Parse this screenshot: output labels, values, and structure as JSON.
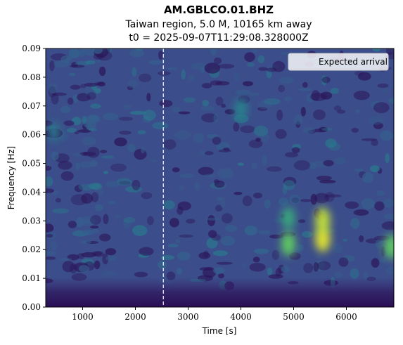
{
  "chart_data": {
    "type": "heatmap",
    "title": "AM.GBLCO.01.BHZ",
    "subtitle_lines": [
      "Taiwan region, 5.0 M, 10165 km away",
      "t0 = 2025-09-07T11:29:08.328000Z"
    ],
    "xlabel": "Time [s]",
    "ylabel": "Frequency [Hz]",
    "xlim": [
      300,
      6900
    ],
    "ylim": [
      0,
      0.09
    ],
    "x_ticks": [
      1000,
      2000,
      3000,
      4000,
      5000,
      6000
    ],
    "x_tick_labels": [
      "1000",
      "2000",
      "3000",
      "4000",
      "5000",
      "6000"
    ],
    "y_ticks": [
      0,
      0.01,
      0.02,
      0.03,
      0.04,
      0.05,
      0.06,
      0.07,
      0.08,
      0.09
    ],
    "y_tick_labels": [
      "0.00",
      "0.01",
      "0.02",
      "0.03",
      "0.04",
      "0.05",
      "0.06",
      "0.07",
      "0.08",
      "0.09"
    ],
    "colormap": "viridis",
    "expected_arrival": {
      "x": 2530,
      "label": "Expected arrival",
      "color": "#ffffff",
      "style": "dashed"
    },
    "legend_position": "upper right",
    "grid": false,
    "energy_hotspots": [
      {
        "time": 4900,
        "freq": 0.022,
        "intensity": 0.75
      },
      {
        "time": 4900,
        "freq": 0.031,
        "intensity": 0.6
      },
      {
        "time": 5550,
        "freq": 0.024,
        "intensity": 0.95
      },
      {
        "time": 5550,
        "freq": 0.03,
        "intensity": 0.9
      },
      {
        "time": 6850,
        "freq": 0.021,
        "intensity": 0.75
      },
      {
        "time": 4000,
        "freq": 0.069,
        "intensity": 0.45
      },
      {
        "time": 450,
        "freq": 0.061,
        "intensity": 0.4
      }
    ]
  }
}
